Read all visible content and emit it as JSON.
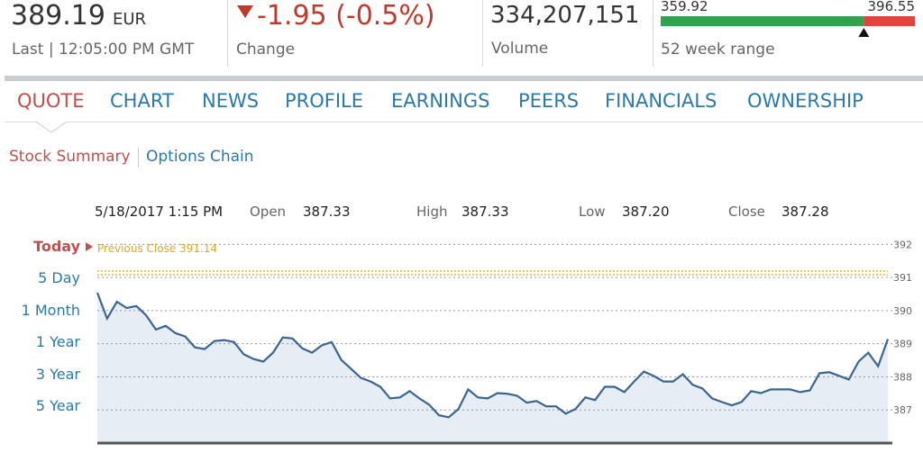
{
  "header": {
    "price": "389.19",
    "currency": "EUR",
    "last_label": "Last",
    "last_time": "12:05:00 PM GMT",
    "change": "-1.95 (-0.5%)",
    "change_label": "Change",
    "volume": "334,207,151",
    "volume_label": "Volume",
    "range_low": 359.92,
    "range_high": 396.55,
    "range_current": 389.19,
    "range_label": "52 week range"
  },
  "tabs": [
    "QUOTE",
    "CHART",
    "NEWS",
    "PROFILE",
    "EARNINGS",
    "PEERS",
    "FINANCIALS",
    "OWNERSHIP"
  ],
  "subtabs": [
    "Stock Summary",
    "Options Chain"
  ],
  "info": {
    "date": "5/18/2017 1:15 PM",
    "open_label": "Open",
    "open": "387.33",
    "high_label": "High",
    "high": "387.33",
    "low_label": "Low",
    "low": "387.20",
    "close_label": "Close",
    "close": "387.28"
  },
  "ranges": [
    "Today",
    "5 Day",
    "1 Month",
    "1 Year",
    "3 Year",
    "5 Year"
  ],
  "chart_data": {
    "type": "line",
    "previous_close_label": "Previous Close",
    "previous_close": 391.14,
    "color": "#3a6591",
    "fill": "#e6edf4",
    "grid": true,
    "ylim": [
      386.0,
      392.2
    ],
    "yticks": [
      387,
      388,
      389,
      390,
      391,
      392
    ],
    "values": [
      390.54,
      389.76,
      390.27,
      390.08,
      390.14,
      389.86,
      389.43,
      389.54,
      389.32,
      389.22,
      388.89,
      388.84,
      389.08,
      389.11,
      389.05,
      388.68,
      388.54,
      388.46,
      388.73,
      389.19,
      389.16,
      388.86,
      388.73,
      388.95,
      389.05,
      388.51,
      388.24,
      387.97,
      387.86,
      387.7,
      387.35,
      387.38,
      387.57,
      387.35,
      387.16,
      386.84,
      386.78,
      387.03,
      387.62,
      387.38,
      387.35,
      387.51,
      387.49,
      387.43,
      387.22,
      387.27,
      387.11,
      387.11,
      386.89,
      387.03,
      387.38,
      387.3,
      387.7,
      387.7,
      387.54,
      387.86,
      388.16,
      388.03,
      387.86,
      387.86,
      388.08,
      387.76,
      387.65,
      387.35,
      387.24,
      387.14,
      387.24,
      387.57,
      387.51,
      387.62,
      387.62,
      387.62,
      387.54,
      387.59,
      388.11,
      388.14,
      388.03,
      387.92,
      388.46,
      388.73,
      388.32,
      389.14
    ]
  }
}
